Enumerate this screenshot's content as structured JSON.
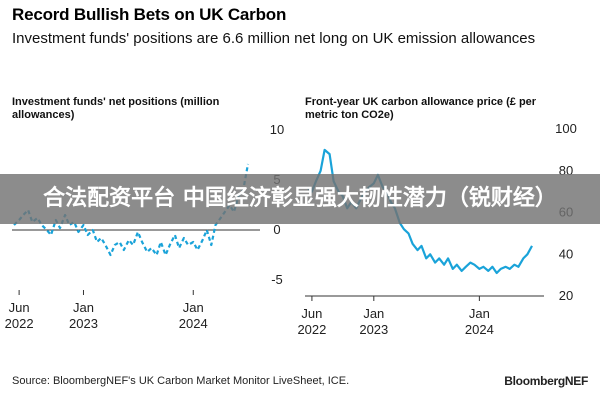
{
  "header": {
    "title": "Record Bullish Bets on UK Carbon",
    "subtitle": "Investment funds' positions are 6.6 million net long on UK emission allowances"
  },
  "overlay": {
    "banner_text": "合法配资平台 中国经济彰显强大韧性潜力（锐财经）"
  },
  "footer": {
    "source": "Source: BloombergNEF's UK Carbon Market Monitor LiveSheet, ICE.",
    "brand": "BloombergNEF"
  },
  "colors": {
    "line": "#1aa3d9",
    "zero_line": "#333333",
    "grid": "#cccccc"
  },
  "chart_data": [
    {
      "type": "line",
      "title": "Investment funds' net positions (million allowances)",
      "style": "dashed",
      "ylim": [
        -6,
        10
      ],
      "y_ticks": [
        10,
        5,
        0,
        -5
      ],
      "x_ticks": [
        {
          "date": "2022-06-01",
          "label": [
            "Jun",
            "2022"
          ]
        },
        {
          "date": "2023-01-01",
          "label": [
            "Jan",
            "2023"
          ]
        },
        {
          "date": "2024-01-01",
          "label": [
            "Jan",
            "2024"
          ]
        }
      ],
      "x": [
        "2022-05-15",
        "2022-06-01",
        "2022-06-15",
        "2022-07-01",
        "2022-07-15",
        "2022-08-01",
        "2022-08-15",
        "2022-09-01",
        "2022-09-15",
        "2022-10-01",
        "2022-10-15",
        "2022-11-01",
        "2022-11-15",
        "2022-12-01",
        "2022-12-15",
        "2023-01-01",
        "2023-01-15",
        "2023-02-01",
        "2023-02-15",
        "2023-03-01",
        "2023-03-15",
        "2023-04-01",
        "2023-04-15",
        "2023-05-01",
        "2023-05-15",
        "2023-06-01",
        "2023-06-15",
        "2023-07-01",
        "2023-07-15",
        "2023-08-01",
        "2023-08-15",
        "2023-09-01",
        "2023-09-15",
        "2023-10-01",
        "2023-10-15",
        "2023-11-01",
        "2023-11-15",
        "2023-12-01",
        "2023-12-15",
        "2024-01-01",
        "2024-01-15",
        "2024-02-01",
        "2024-02-15",
        "2024-03-01",
        "2024-03-15",
        "2024-04-01",
        "2024-04-15",
        "2024-05-01",
        "2024-05-15",
        "2024-06-01",
        "2024-06-15",
        "2024-07-01"
      ],
      "series": [
        {
          "values": [
            0.5,
            1.0,
            1.5,
            2.0,
            0.8,
            1.2,
            0.5,
            0.0,
            -0.5,
            1.0,
            0.2,
            1.5,
            0.5,
            0.8,
            -0.2,
            0.5,
            -0.5,
            0.0,
            -1.2,
            -0.8,
            -1.5,
            -2.5,
            -1.5,
            -1.2,
            -2.0,
            -1.0,
            -1.5,
            -0.2,
            -1.2,
            -2.2,
            -1.8,
            -2.5,
            -1.2,
            -2.5,
            -1.5,
            -0.5,
            -1.8,
            -0.8,
            -1.5,
            -1.2,
            -2.0,
            -1.0,
            0.0,
            -1.5,
            0.5,
            1.2,
            1.8,
            2.5,
            1.8,
            3.5,
            4.0,
            6.6
          ]
        }
      ]
    },
    {
      "type": "line",
      "title": "Front-year UK carbon allowance price (£ per metric ton CO2e)",
      "ylim": [
        20,
        100
      ],
      "y_ticks": [
        100,
        80,
        60,
        40,
        20
      ],
      "x_ticks": [
        {
          "date": "2022-06-01",
          "label": [
            "Jun",
            "2022"
          ]
        },
        {
          "date": "2023-01-01",
          "label": [
            "Jan",
            "2023"
          ]
        },
        {
          "date": "2024-01-01",
          "label": [
            "Jan",
            "2024"
          ]
        }
      ],
      "x": [
        "2022-05-15",
        "2022-06-01",
        "2022-06-15",
        "2022-07-01",
        "2022-07-15",
        "2022-08-01",
        "2022-08-15",
        "2022-09-01",
        "2022-09-15",
        "2022-10-01",
        "2022-10-15",
        "2022-11-01",
        "2022-11-15",
        "2022-12-01",
        "2022-12-15",
        "2023-01-01",
        "2023-01-15",
        "2023-02-01",
        "2023-02-15",
        "2023-03-01",
        "2023-03-15",
        "2023-04-01",
        "2023-04-15",
        "2023-05-01",
        "2023-05-15",
        "2023-06-01",
        "2023-06-15",
        "2023-07-01",
        "2023-07-15",
        "2023-08-01",
        "2023-08-15",
        "2023-09-01",
        "2023-09-15",
        "2023-10-01",
        "2023-10-15",
        "2023-11-01",
        "2023-11-15",
        "2023-12-01",
        "2023-12-15",
        "2024-01-01",
        "2024-01-15",
        "2024-02-01",
        "2024-02-15",
        "2024-03-01",
        "2024-03-15",
        "2024-04-01",
        "2024-04-15",
        "2024-05-01",
        "2024-05-15",
        "2024-06-01",
        "2024-06-15",
        "2024-07-01"
      ],
      "series": [
        {
          "values": [
            72,
            70,
            75,
            80,
            90,
            88,
            75,
            70,
            68,
            62,
            65,
            62,
            66,
            70,
            72,
            74,
            78,
            72,
            70,
            65,
            62,
            55,
            52,
            50,
            45,
            42,
            44,
            38,
            40,
            36,
            38,
            35,
            38,
            33,
            35,
            32,
            34,
            36,
            35,
            33,
            34,
            32,
            34,
            31,
            33,
            34,
            33,
            35,
            34,
            38,
            40,
            44
          ]
        }
      ]
    }
  ]
}
